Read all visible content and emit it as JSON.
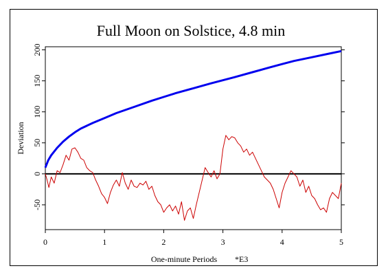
{
  "chart_data": {
    "type": "line",
    "title": "Full Moon on Solstice, 4.8 min",
    "xlabel": "One-minute Periods",
    "xlabel_suffix": "*E3",
    "ylabel": "Deviation",
    "xlim": [
      0,
      5
    ],
    "ylim": [
      -90,
      205
    ],
    "x_ticks": [
      0,
      1,
      2,
      3,
      4,
      5
    ],
    "y_ticks": [
      -50,
      0,
      50,
      100,
      150,
      200
    ],
    "zero_line": true,
    "series": [
      {
        "color": "#0000ee",
        "x": [
          0,
          0.05,
          0.1,
          0.2,
          0.3,
          0.4,
          0.5,
          0.6,
          0.8,
          1.0,
          1.2,
          1.5,
          1.8,
          2.0,
          2.2,
          2.5,
          2.8,
          3.0,
          3.2,
          3.5,
          3.8,
          4.0,
          4.2,
          4.5,
          4.8,
          5.0
        ],
        "y": [
          10,
          22,
          30,
          42,
          52,
          60,
          67,
          73,
          82,
          90,
          98,
          108,
          118,
          124,
          130,
          138,
          146,
          151,
          156,
          164,
          172,
          177,
          182,
          188,
          194,
          198
        ]
      },
      {
        "color": "#cc0000",
        "x": [
          0,
          0.03,
          0.06,
          0.1,
          0.15,
          0.2,
          0.25,
          0.3,
          0.35,
          0.4,
          0.45,
          0.5,
          0.55,
          0.6,
          0.65,
          0.7,
          0.75,
          0.8,
          0.85,
          0.9,
          0.95,
          1.0,
          1.05,
          1.1,
          1.15,
          1.2,
          1.25,
          1.3,
          1.35,
          1.4,
          1.45,
          1.5,
          1.55,
          1.6,
          1.65,
          1.7,
          1.75,
          1.8,
          1.85,
          1.9,
          1.95,
          2.0,
          2.05,
          2.1,
          2.15,
          2.2,
          2.25,
          2.3,
          2.35,
          2.4,
          2.45,
          2.5,
          2.55,
          2.6,
          2.65,
          2.7,
          2.75,
          2.8,
          2.85,
          2.9,
          2.95,
          3.0,
          3.05,
          3.1,
          3.15,
          3.2,
          3.25,
          3.3,
          3.35,
          3.4,
          3.45,
          3.5,
          3.55,
          3.6,
          3.65,
          3.7,
          3.75,
          3.8,
          3.85,
          3.9,
          3.95,
          4.0,
          4.05,
          4.1,
          4.15,
          4.2,
          4.25,
          4.3,
          4.35,
          4.4,
          4.45,
          4.5,
          4.55,
          4.6,
          4.65,
          4.7,
          4.75,
          4.8,
          4.85,
          4.9,
          4.95,
          5.0
        ],
        "y": [
          0,
          -10,
          -22,
          -5,
          -15,
          5,
          2,
          15,
          30,
          22,
          40,
          42,
          35,
          25,
          22,
          10,
          5,
          2,
          -10,
          -20,
          -32,
          -38,
          -48,
          -30,
          -18,
          -10,
          -20,
          2,
          -15,
          -25,
          -10,
          -20,
          -22,
          -15,
          -18,
          -12,
          -25,
          -20,
          -35,
          -45,
          -50,
          -62,
          -55,
          -50,
          -60,
          -52,
          -65,
          -45,
          -75,
          -60,
          -55,
          -72,
          -50,
          -30,
          -10,
          10,
          2,
          -5,
          5,
          -8,
          0,
          40,
          62,
          55,
          60,
          58,
          50,
          45,
          35,
          40,
          30,
          35,
          25,
          15,
          5,
          -5,
          -10,
          -15,
          -25,
          -40,
          -55,
          -30,
          -15,
          -5,
          5,
          0,
          -5,
          -20,
          -10,
          -30,
          -20,
          -35,
          -40,
          -50,
          -58,
          -55,
          -62,
          -40,
          -30,
          -35,
          -40,
          -15
        ]
      }
    ]
  }
}
